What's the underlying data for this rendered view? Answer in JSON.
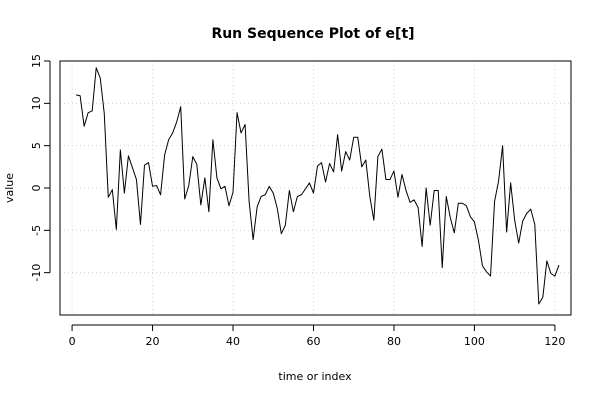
{
  "chart_data": {
    "type": "line",
    "title": "Run Sequence Plot of e[t]",
    "xlabel": "time or index",
    "ylabel": "value",
    "xlim": [
      -3,
      124
    ],
    "ylim": [
      -15,
      15
    ],
    "xticks": [
      0,
      20,
      40,
      60,
      80,
      100,
      120
    ],
    "yticks": [
      -10,
      -5,
      0,
      5,
      10,
      15
    ],
    "grid": true,
    "series": [
      {
        "x": [
          1,
          2,
          3,
          4,
          5,
          6,
          7,
          8,
          9,
          10,
          11,
          12,
          13,
          14,
          15,
          16,
          17,
          18,
          19,
          20,
          21,
          22,
          23,
          24,
          25,
          26,
          27,
          28,
          29,
          30,
          31,
          32,
          33,
          34,
          35,
          36,
          37,
          38,
          39,
          40,
          41,
          42,
          43,
          44,
          45,
          46,
          47,
          48,
          49,
          50,
          51,
          52,
          53,
          54,
          55,
          56,
          57,
          58,
          59,
          60,
          61,
          62,
          63,
          64,
          65,
          66,
          67,
          68,
          69,
          70,
          71,
          72,
          73,
          74,
          75,
          76,
          77,
          78,
          79,
          80,
          81,
          82,
          83,
          84,
          85,
          86,
          87,
          88,
          89,
          90,
          91,
          92,
          93,
          94,
          95,
          96,
          97,
          98,
          99,
          100,
          101,
          102,
          103,
          104,
          105,
          106,
          107,
          108,
          109,
          110,
          111,
          112,
          113,
          114,
          115,
          116,
          117,
          118,
          119,
          120,
          121
        ],
        "values": [
          11.0,
          10.9,
          7.3,
          8.9,
          9.1,
          14.2,
          13.0,
          8.8,
          -1.1,
          -0.2,
          -4.9,
          4.5,
          -0.6,
          3.8,
          2.4,
          1.0,
          -4.3,
          2.7,
          3.0,
          0.2,
          0.3,
          -0.8,
          3.9,
          5.7,
          6.5,
          7.8,
          9.6,
          -1.3,
          0.3,
          3.7,
          2.8,
          -2.0,
          1.2,
          -2.8,
          5.7,
          1.2,
          -0.1,
          0.2,
          -2.1,
          -0.5,
          8.9,
          6.5,
          7.5,
          -1.6,
          -6.1,
          -2.2,
          -1.0,
          -0.8,
          0.2,
          -0.6,
          -2.4,
          -5.4,
          -4.4,
          -0.3,
          -2.8,
          -1.0,
          -0.8,
          -0.1,
          0.6,
          -0.6,
          2.6,
          3.0,
          0.7,
          2.9,
          1.9,
          6.3,
          2.0,
          4.3,
          3.3,
          6.0,
          6.0,
          2.5,
          3.3,
          -1.0,
          -3.8,
          3.7,
          4.6,
          1.0,
          1.0,
          2.0,
          -1.1,
          1.6,
          -0.3,
          -1.7,
          -1.4,
          -2.3,
          -6.9,
          0.0,
          -4.4,
          -0.3,
          -0.3,
          -9.4,
          -1.0,
          -3.5,
          -5.3,
          -1.8,
          -1.8,
          -2.1,
          -3.4,
          -4.0,
          -6.2,
          -9.2,
          -9.9,
          -10.4,
          -1.6,
          0.8,
          5.0,
          -5.2,
          0.6,
          -3.8,
          -6.5,
          -3.9,
          -3.0,
          -2.5,
          -4.3,
          -13.7,
          -12.9,
          -8.6,
          -10.1,
          -10.4,
          -9.1
        ]
      }
    ]
  }
}
